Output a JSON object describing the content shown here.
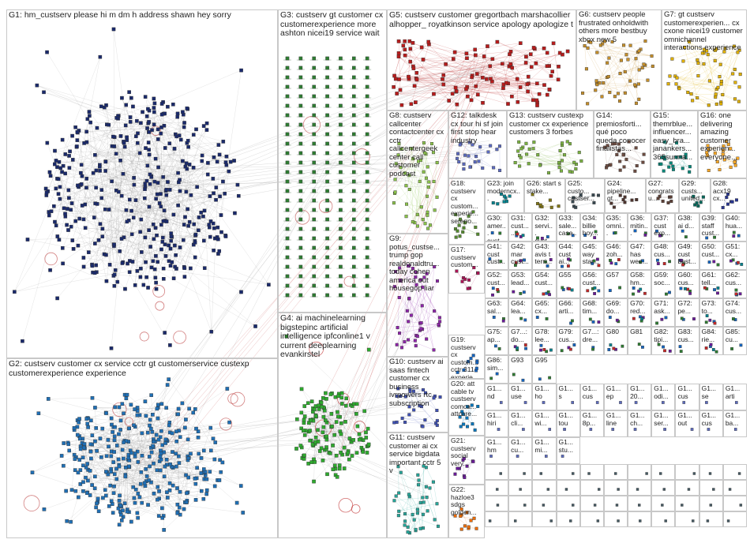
{
  "groups": [
    {
      "id": "G1",
      "label": "G1: hm_custserv please hi m dm h address shawn hey sorry",
      "color": "#1a2a6c",
      "layout": "ball"
    },
    {
      "id": "G2",
      "label": "G2: custserv customer cx service cctr gt customerservice custexp customerexperience experience",
      "color": "#1f6fb5",
      "layout": "ball"
    },
    {
      "id": "G3",
      "label": "G3: custserv gt customer cx customerexperience more ashton nicei19 service wait",
      "color": "#2e7d32",
      "layout": "grid"
    },
    {
      "id": "G4",
      "label": "G4: ai machinelearning bigstepinc artificial intelligence ipfconline1 v current deeplearning evankirstel",
      "color": "#2eaa2e",
      "layout": "ball"
    },
    {
      "id": "G5",
      "label": "G5: custserv customer gregortbach marshacollier alhopper_ royatkinson service apology apologize t",
      "color": "#b71c1c",
      "layout": "cluster"
    },
    {
      "id": "G6",
      "label": "G6: custserv people frustrated onholdwith others more bestbuy xbox new 5",
      "color": "#c58f2b",
      "layout": "cluster"
    },
    {
      "id": "G7",
      "label": "G7: gt custserv customerexperien... cx cxone nicei19 customer omnichannel interactions experience",
      "color": "#e0b000",
      "layout": "cluster"
    },
    {
      "id": "G8",
      "label": "G8: custserv callcenter contactcenter cx cctr callcentergeek center call customer podcast",
      "color": "#8bc34a",
      "layout": "cluster"
    },
    {
      "id": "G9",
      "label": "G9: potus_custse... trump gop realdonaldtru... today cohen america out housegop liar",
      "color": "#8e24aa",
      "layout": "cluster"
    },
    {
      "id": "G10",
      "label": "G10: custserv ai saas fintech customer cx business ivrpowers rtc subscription",
      "color": "#3f51b5",
      "layout": "cluster"
    },
    {
      "id": "G11",
      "label": "G11: custserv customer ai cx service bigdata important cctr 5 v",
      "color": "#26a69a",
      "layout": "cluster"
    },
    {
      "id": "G12",
      "label": "G12: talkdesk cx tour hi sf join first stop hear industry",
      "color": "#5c6bc0",
      "layout": "cluster"
    },
    {
      "id": "G13",
      "label": "G13: custserv custexp customer cx experience customers 3 forbes",
      "color": "#7cb342",
      "layout": "cluster"
    },
    {
      "id": "G14",
      "label": "G14: premiosforti... qué poco queda conocer finalistas...",
      "color": "#6d4c41",
      "layout": "cluster"
    },
    {
      "id": "G15",
      "label": "G15: themrblue... influencer... easy_bra... janankers... 365surma...",
      "color": "#00897b",
      "layout": "cluster"
    },
    {
      "id": "G16",
      "label": "G16: one delivering amazing customer experien... everyone...",
      "color": "#f9a825",
      "layout": "cluster"
    },
    {
      "id": "G17",
      "label": "G17: custserv custom...",
      "color": "#ad1457",
      "layout": "cluster"
    },
    {
      "id": "G18",
      "label": "G18: custserv cx custom... experie... sereno...",
      "color": "#558b2f",
      "layout": "cluster"
    },
    {
      "id": "G19",
      "label": "G19: custserv cx custom... cctr 311 experie...",
      "color": "#1565c0",
      "layout": "cluster"
    },
    {
      "id": "G20",
      "label": "G20: att cable tv custserv comca... attcare...",
      "color": "#0277bd",
      "layout": "cluster"
    },
    {
      "id": "G21",
      "label": "G21: custserv social very...",
      "color": "#6a1b9a",
      "layout": "cluster"
    },
    {
      "id": "G22",
      "label": "G22: hazloe3 sdgs golden...",
      "color": "#ef6c00",
      "layout": "cluster"
    },
    {
      "id": "G23",
      "label": "G23: join moderncx...",
      "color": "#00838f",
      "layout": "cluster"
    },
    {
      "id": "G24",
      "label": "G24: pipeline... gt...",
      "color": "#4e342e",
      "layout": "cluster"
    },
    {
      "id": "G25",
      "label": "G25: custo... custser...",
      "color": "#37474f",
      "layout": "cluster"
    },
    {
      "id": "G26",
      "label": "G26: start s stake...",
      "color": "#827717",
      "layout": "cluster"
    },
    {
      "id": "G27",
      "label": "G27: congrats u...",
      "color": "#5d4037",
      "layout": "cluster"
    },
    {
      "id": "G28",
      "label": "G28: acx19 cx...",
      "color": "#283593",
      "layout": "cluster"
    },
    {
      "id": "G29",
      "label": "G29: custs... united...",
      "color": "#00695c",
      "layout": "cluster"
    }
  ],
  "small_groups": [
    {
      "id": "G30",
      "label": "G30: amer... cust..."
    },
    {
      "id": "G31",
      "label": "G31: cust... ..."
    },
    {
      "id": "G32",
      "label": "G32: servi... cust..."
    },
    {
      "id": "G33",
      "label": "G33: sale... case..."
    },
    {
      "id": "G34",
      "label": "G34: billie hoy..."
    },
    {
      "id": "G35",
      "label": "G35: omni..."
    },
    {
      "id": "G36",
      "label": "G36: mitin..."
    },
    {
      "id": "G37",
      "label": "G37: cust exp..."
    },
    {
      "id": "G38",
      "label": "G38: ai d..."
    },
    {
      "id": "G39",
      "label": "G39: staff cust..."
    },
    {
      "id": "G40",
      "label": "G40: hua..."
    },
    {
      "id": "G41",
      "label": "G41: cust cust..."
    },
    {
      "id": "G42",
      "label": "G42: mar cust..."
    },
    {
      "id": "G43",
      "label": "G43: avis t terri..."
    },
    {
      "id": "G44",
      "label": "G44: cust ai..."
    },
    {
      "id": "G45",
      "label": "G45: way star..."
    },
    {
      "id": "G46",
      "label": "G46: zoh..."
    },
    {
      "id": "G47",
      "label": "G47: has wee..."
    },
    {
      "id": "G48",
      "label": "G48: cus..."
    },
    {
      "id": "G49",
      "label": "G49: cust best..."
    },
    {
      "id": "G50",
      "label": "G50: cust..."
    },
    {
      "id": "G51",
      "label": "G51: cx..."
    },
    {
      "id": "G52",
      "label": "G52: cust..."
    },
    {
      "id": "G53",
      "label": "G53: lead..."
    },
    {
      "id": "G54",
      "label": "G54: cust..."
    },
    {
      "id": "G55",
      "label": "G55"
    },
    {
      "id": "G56",
      "label": "G56: cust..."
    },
    {
      "id": "G57",
      "label": "G57"
    },
    {
      "id": "G58",
      "label": "G58: hm..."
    },
    {
      "id": "G59",
      "label": "G59: soc..."
    },
    {
      "id": "G60",
      "label": "G60: cus..."
    },
    {
      "id": "G61",
      "label": "G61: tell..."
    },
    {
      "id": "G62",
      "label": "G62: cus..."
    },
    {
      "id": "G63",
      "label": "G63: sal..."
    },
    {
      "id": "G64",
      "label": "G64: lea..."
    },
    {
      "id": "G65",
      "label": "G65: cx..."
    },
    {
      "id": "G66",
      "label": "G66: arti..."
    },
    {
      "id": "G68",
      "label": "G68: tim..."
    },
    {
      "id": "G69",
      "label": "G69: do..."
    },
    {
      "id": "G70",
      "label": "G70: red..."
    },
    {
      "id": "G71",
      "label": "G71: ask..."
    },
    {
      "id": "G72",
      "label": "G72: pe..."
    },
    {
      "id": "G73",
      "label": "G73: to..."
    },
    {
      "id": "G74",
      "label": "G74: cus..."
    },
    {
      "id": "G75",
      "label": "G75: ap..."
    },
    {
      "id": "G77",
      "label": "G7...: do..."
    },
    {
      "id": "G78",
      "label": "G78: lee..."
    },
    {
      "id": "G79",
      "label": "G79: cus..."
    },
    {
      "id": "G76",
      "label": "G7...: dre..."
    },
    {
      "id": "G80",
      "label": "G80"
    },
    {
      "id": "G81",
      "label": "G81"
    },
    {
      "id": "G82",
      "label": "G82: tipi..."
    },
    {
      "id": "G83",
      "label": "G83: cus..."
    },
    {
      "id": "G84",
      "label": "G84: rie..."
    },
    {
      "id": "G85",
      "label": "G85: cu..."
    },
    {
      "id": "G86",
      "label": "G86: sim..."
    },
    {
      "id": "G93",
      "label": "G93"
    },
    {
      "id": "G95",
      "label": "G95"
    }
  ],
  "tiny_labels": [
    "G1... nd",
    "G1... use",
    "G1... ho",
    "G1... s",
    "G1... cus",
    "G1... ep",
    "G1... 20...",
    "G1... odi...",
    "G1... cus",
    "G1... se",
    "G1... arti",
    "G1... hiri",
    "G1... cli...",
    "G1... wi...",
    "G1... tou",
    "G1... 8p...",
    "G1... line",
    "G1... ch...",
    "G1... ser...",
    "G1... out",
    "G1... cus",
    "G1... ba...",
    "G1... hm",
    "G1... cu...",
    "G1... mi...",
    "G1... stu..."
  ],
  "colors": {
    "box_border": "#c8c8c8",
    "edge": "#9a9a9a",
    "long_edge": "#c04040"
  }
}
